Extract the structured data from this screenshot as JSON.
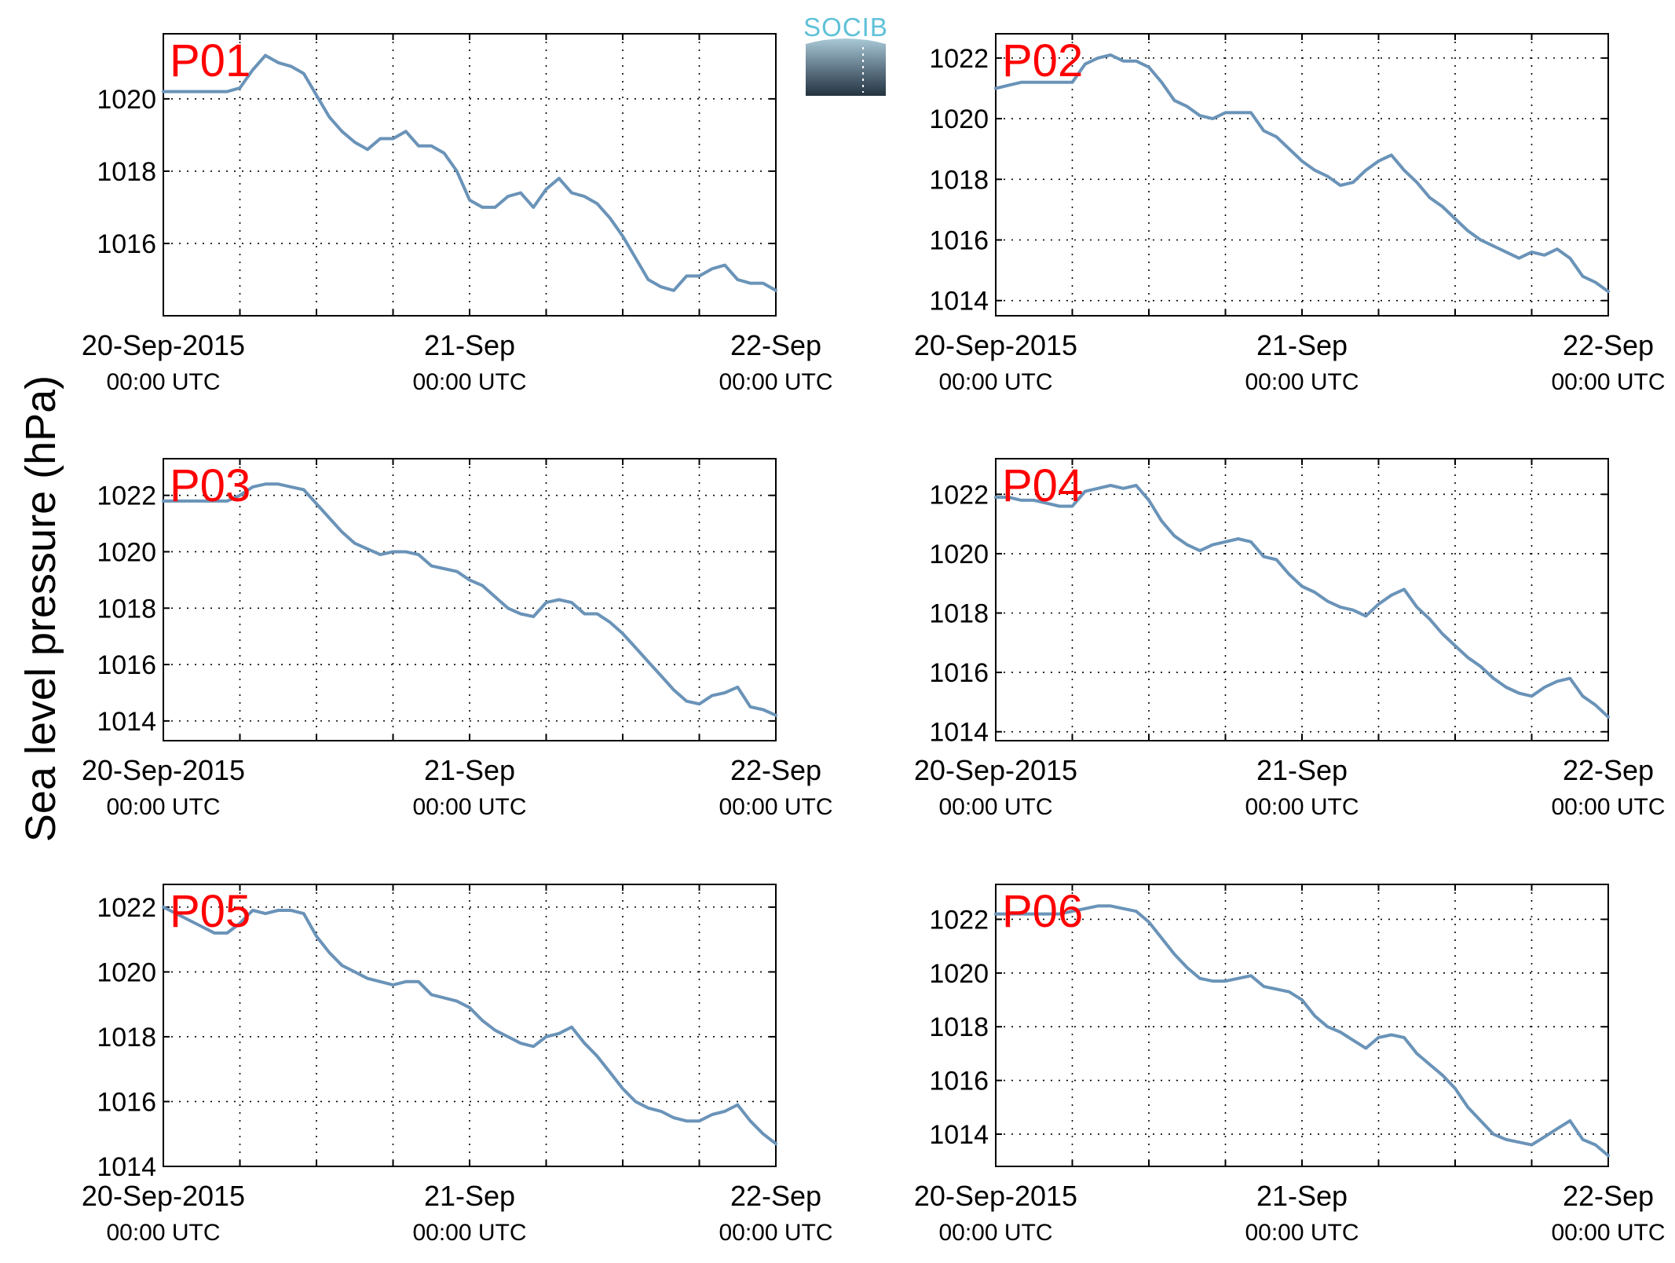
{
  "figure": {
    "ylabel": "Sea level pressure (hPa)",
    "logo_text": "SOCIB"
  },
  "style": {
    "line_color": "#6a93b8",
    "label_color": "#ff0000",
    "axis_color": "#000000",
    "grid": true,
    "grid_style": "dotted"
  },
  "chart_data": [
    {
      "type": "line",
      "title": "P01",
      "x_ticks": [
        {
          "x": 0,
          "label": "20-Sep-2015",
          "sublabel": "00:00 UTC"
        },
        {
          "x": 24,
          "label": "21-Sep",
          "sublabel": "00:00 UTC"
        },
        {
          "x": 48,
          "label": "22-Sep",
          "sublabel": "00:00 UTC"
        }
      ],
      "x_grid": [
        6,
        12,
        18,
        24,
        30,
        36,
        42
      ],
      "xlim": [
        0,
        48
      ],
      "ylim": [
        1014.0,
        1021.8
      ],
      "y_ticks": [
        1016,
        1018,
        1020
      ],
      "x": [
        0,
        1,
        2,
        3,
        4,
        5,
        6,
        7,
        8,
        9,
        10,
        11,
        12,
        13,
        14,
        15,
        16,
        17,
        18,
        19,
        20,
        21,
        22,
        23,
        24,
        25,
        26,
        27,
        28,
        29,
        30,
        31,
        32,
        33,
        34,
        35,
        36,
        37,
        38,
        39,
        40,
        41,
        42,
        43,
        44,
        45,
        46,
        47,
        48
      ],
      "y": [
        1020.2,
        1020.2,
        1020.2,
        1020.2,
        1020.2,
        1020.2,
        1020.3,
        1020.8,
        1021.2,
        1021.0,
        1020.9,
        1020.7,
        1020.1,
        1019.5,
        1019.1,
        1018.8,
        1018.6,
        1018.9,
        1018.9,
        1019.1,
        1018.7,
        1018.7,
        1018.5,
        1018.0,
        1017.2,
        1017.0,
        1017.0,
        1017.3,
        1017.4,
        1017.0,
        1017.5,
        1017.8,
        1017.4,
        1017.3,
        1017.1,
        1016.7,
        1016.2,
        1015.6,
        1015.0,
        1014.8,
        1014.7,
        1015.1,
        1015.1,
        1015.3,
        1015.4,
        1015.0,
        1014.9,
        1014.9,
        1014.7
      ]
    },
    {
      "type": "line",
      "title": "P02",
      "x_ticks": [
        {
          "x": 0,
          "label": "20-Sep-2015",
          "sublabel": "00:00 UTC"
        },
        {
          "x": 24,
          "label": "21-Sep",
          "sublabel": "00:00 UTC"
        },
        {
          "x": 48,
          "label": "22-Sep",
          "sublabel": "00:00 UTC"
        }
      ],
      "x_grid": [
        6,
        12,
        18,
        24,
        30,
        36,
        42
      ],
      "xlim": [
        0,
        48
      ],
      "ylim": [
        1013.5,
        1022.8
      ],
      "y_ticks": [
        1014,
        1016,
        1018,
        1020,
        1022
      ],
      "x": [
        0,
        1,
        2,
        3,
        4,
        5,
        6,
        7,
        8,
        9,
        10,
        11,
        12,
        13,
        14,
        15,
        16,
        17,
        18,
        19,
        20,
        21,
        22,
        23,
        24,
        25,
        26,
        27,
        28,
        29,
        30,
        31,
        32,
        33,
        34,
        35,
        36,
        37,
        38,
        39,
        40,
        41,
        42,
        43,
        44,
        45,
        46,
        47,
        48
      ],
      "y": [
        1021.0,
        1021.1,
        1021.2,
        1021.2,
        1021.2,
        1021.2,
        1021.2,
        1021.8,
        1022.0,
        1022.1,
        1021.9,
        1021.9,
        1021.7,
        1021.2,
        1020.6,
        1020.4,
        1020.1,
        1020.0,
        1020.2,
        1020.2,
        1020.2,
        1019.6,
        1019.4,
        1019.0,
        1018.6,
        1018.3,
        1018.1,
        1017.8,
        1017.9,
        1018.3,
        1018.6,
        1018.8,
        1018.3,
        1017.9,
        1017.4,
        1017.1,
        1016.7,
        1016.3,
        1016.0,
        1015.8,
        1015.6,
        1015.4,
        1015.6,
        1015.5,
        1015.7,
        1015.4,
        1014.8,
        1014.6,
        1014.3
      ]
    },
    {
      "type": "line",
      "title": "P03",
      "x_ticks": [
        {
          "x": 0,
          "label": "20-Sep-2015",
          "sublabel": "00:00 UTC"
        },
        {
          "x": 24,
          "label": "21-Sep",
          "sublabel": "00:00 UTC"
        },
        {
          "x": 48,
          "label": "22-Sep",
          "sublabel": "00:00 UTC"
        }
      ],
      "x_grid": [
        6,
        12,
        18,
        24,
        30,
        36,
        42
      ],
      "xlim": [
        0,
        48
      ],
      "ylim": [
        1013.3,
        1023.3
      ],
      "y_ticks": [
        1014,
        1016,
        1018,
        1020,
        1022
      ],
      "x": [
        0,
        1,
        2,
        3,
        4,
        5,
        6,
        7,
        8,
        9,
        10,
        11,
        12,
        13,
        14,
        15,
        16,
        17,
        18,
        19,
        20,
        21,
        22,
        23,
        24,
        25,
        26,
        27,
        28,
        29,
        30,
        31,
        32,
        33,
        34,
        35,
        36,
        37,
        38,
        39,
        40,
        41,
        42,
        43,
        44,
        45,
        46,
        47,
        48
      ],
      "y": [
        1021.8,
        1021.8,
        1021.8,
        1021.8,
        1021.8,
        1021.8,
        1022.0,
        1022.3,
        1022.4,
        1022.4,
        1022.3,
        1022.2,
        1021.7,
        1021.2,
        1020.7,
        1020.3,
        1020.1,
        1019.9,
        1020.0,
        1020.0,
        1019.9,
        1019.5,
        1019.4,
        1019.3,
        1019.0,
        1018.8,
        1018.4,
        1018.0,
        1017.8,
        1017.7,
        1018.2,
        1018.3,
        1018.2,
        1017.8,
        1017.8,
        1017.5,
        1017.1,
        1016.6,
        1016.1,
        1015.6,
        1015.1,
        1014.7,
        1014.6,
        1014.9,
        1015.0,
        1015.2,
        1014.5,
        1014.4,
        1014.2
      ]
    },
    {
      "type": "line",
      "title": "P04",
      "x_ticks": [
        {
          "x": 0,
          "label": "20-Sep-2015",
          "sublabel": "00:00 UTC"
        },
        {
          "x": 24,
          "label": "21-Sep",
          "sublabel": "00:00 UTC"
        },
        {
          "x": 48,
          "label": "22-Sep",
          "sublabel": "00:00 UTC"
        }
      ],
      "x_grid": [
        6,
        12,
        18,
        24,
        30,
        36,
        42
      ],
      "xlim": [
        0,
        48
      ],
      "ylim": [
        1013.7,
        1023.2
      ],
      "y_ticks": [
        1014,
        1016,
        1018,
        1020,
        1022
      ],
      "x": [
        0,
        1,
        2,
        3,
        4,
        5,
        6,
        7,
        8,
        9,
        10,
        11,
        12,
        13,
        14,
        15,
        16,
        17,
        18,
        19,
        20,
        21,
        22,
        23,
        24,
        25,
        26,
        27,
        28,
        29,
        30,
        31,
        32,
        33,
        34,
        35,
        36,
        37,
        38,
        39,
        40,
        41,
        42,
        43,
        44,
        45,
        46,
        47,
        48
      ],
      "y": [
        1021.9,
        1021.9,
        1021.8,
        1021.8,
        1021.7,
        1021.6,
        1021.6,
        1022.1,
        1022.2,
        1022.3,
        1022.2,
        1022.3,
        1021.8,
        1021.1,
        1020.6,
        1020.3,
        1020.1,
        1020.3,
        1020.4,
        1020.5,
        1020.4,
        1019.9,
        1019.8,
        1019.3,
        1018.9,
        1018.7,
        1018.4,
        1018.2,
        1018.1,
        1017.9,
        1018.3,
        1018.6,
        1018.8,
        1018.2,
        1017.8,
        1017.3,
        1016.9,
        1016.5,
        1016.2,
        1015.8,
        1015.5,
        1015.3,
        1015.2,
        1015.5,
        1015.7,
        1015.8,
        1015.2,
        1014.9,
        1014.5
      ]
    },
    {
      "type": "line",
      "title": "P05",
      "x_ticks": [
        {
          "x": 0,
          "label": "20-Sep-2015",
          "sublabel": "00:00 UTC"
        },
        {
          "x": 24,
          "label": "21-Sep",
          "sublabel": "00:00 UTC"
        },
        {
          "x": 48,
          "label": "22-Sep",
          "sublabel": "00:00 UTC"
        }
      ],
      "x_grid": [
        6,
        12,
        18,
        24,
        30,
        36,
        42
      ],
      "xlim": [
        0,
        48
      ],
      "ylim": [
        1014.0,
        1022.7
      ],
      "y_ticks": [
        1014,
        1016,
        1018,
        1020,
        1022
      ],
      "x": [
        0,
        1,
        2,
        3,
        4,
        5,
        6,
        7,
        8,
        9,
        10,
        11,
        12,
        13,
        14,
        15,
        16,
        17,
        18,
        19,
        20,
        21,
        22,
        23,
        24,
        25,
        26,
        27,
        28,
        29,
        30,
        31,
        32,
        33,
        34,
        35,
        36,
        37,
        38,
        39,
        40,
        41,
        42,
        43,
        44,
        45,
        46,
        47,
        48
      ],
      "y": [
        1022.0,
        1021.8,
        1021.6,
        1021.4,
        1021.2,
        1021.2,
        1021.5,
        1021.9,
        1021.8,
        1021.9,
        1021.9,
        1021.8,
        1021.1,
        1020.6,
        1020.2,
        1020.0,
        1019.8,
        1019.7,
        1019.6,
        1019.7,
        1019.7,
        1019.3,
        1019.2,
        1019.1,
        1018.9,
        1018.5,
        1018.2,
        1018.0,
        1017.8,
        1017.7,
        1018.0,
        1018.1,
        1018.3,
        1017.8,
        1017.4,
        1016.9,
        1016.4,
        1016.0,
        1015.8,
        1015.7,
        1015.5,
        1015.4,
        1015.4,
        1015.6,
        1015.7,
        1015.9,
        1015.4,
        1015.0,
        1014.7
      ]
    },
    {
      "type": "line",
      "title": "P06",
      "x_ticks": [
        {
          "x": 0,
          "label": "20-Sep-2015",
          "sublabel": "00:00 UTC"
        },
        {
          "x": 24,
          "label": "21-Sep",
          "sublabel": "00:00 UTC"
        },
        {
          "x": 48,
          "label": "22-Sep",
          "sublabel": "00:00 UTC"
        }
      ],
      "x_grid": [
        6,
        12,
        18,
        24,
        30,
        36,
        42
      ],
      "xlim": [
        0,
        48
      ],
      "ylim": [
        1012.8,
        1023.3
      ],
      "y_ticks": [
        1014,
        1016,
        1018,
        1020,
        1022
      ],
      "x": [
        0,
        1,
        2,
        3,
        4,
        5,
        6,
        7,
        8,
        9,
        10,
        11,
        12,
        13,
        14,
        15,
        16,
        17,
        18,
        19,
        20,
        21,
        22,
        23,
        24,
        25,
        26,
        27,
        28,
        29,
        30,
        31,
        32,
        33,
        34,
        35,
        36,
        37,
        38,
        39,
        40,
        41,
        42,
        43,
        44,
        45,
        46,
        47,
        48
      ],
      "y": [
        1022.2,
        1022.2,
        1022.2,
        1022.2,
        1022.2,
        1022.2,
        1022.3,
        1022.4,
        1022.5,
        1022.5,
        1022.4,
        1022.3,
        1021.9,
        1021.3,
        1020.7,
        1020.2,
        1019.8,
        1019.7,
        1019.7,
        1019.8,
        1019.9,
        1019.5,
        1019.4,
        1019.3,
        1019.0,
        1018.4,
        1018.0,
        1017.8,
        1017.5,
        1017.2,
        1017.6,
        1017.7,
        1017.6,
        1017.0,
        1016.6,
        1016.2,
        1015.7,
        1015.0,
        1014.5,
        1014.0,
        1013.8,
        1013.7,
        1013.6,
        1013.9,
        1014.2,
        1014.5,
        1013.8,
        1013.6,
        1013.2
      ]
    }
  ]
}
